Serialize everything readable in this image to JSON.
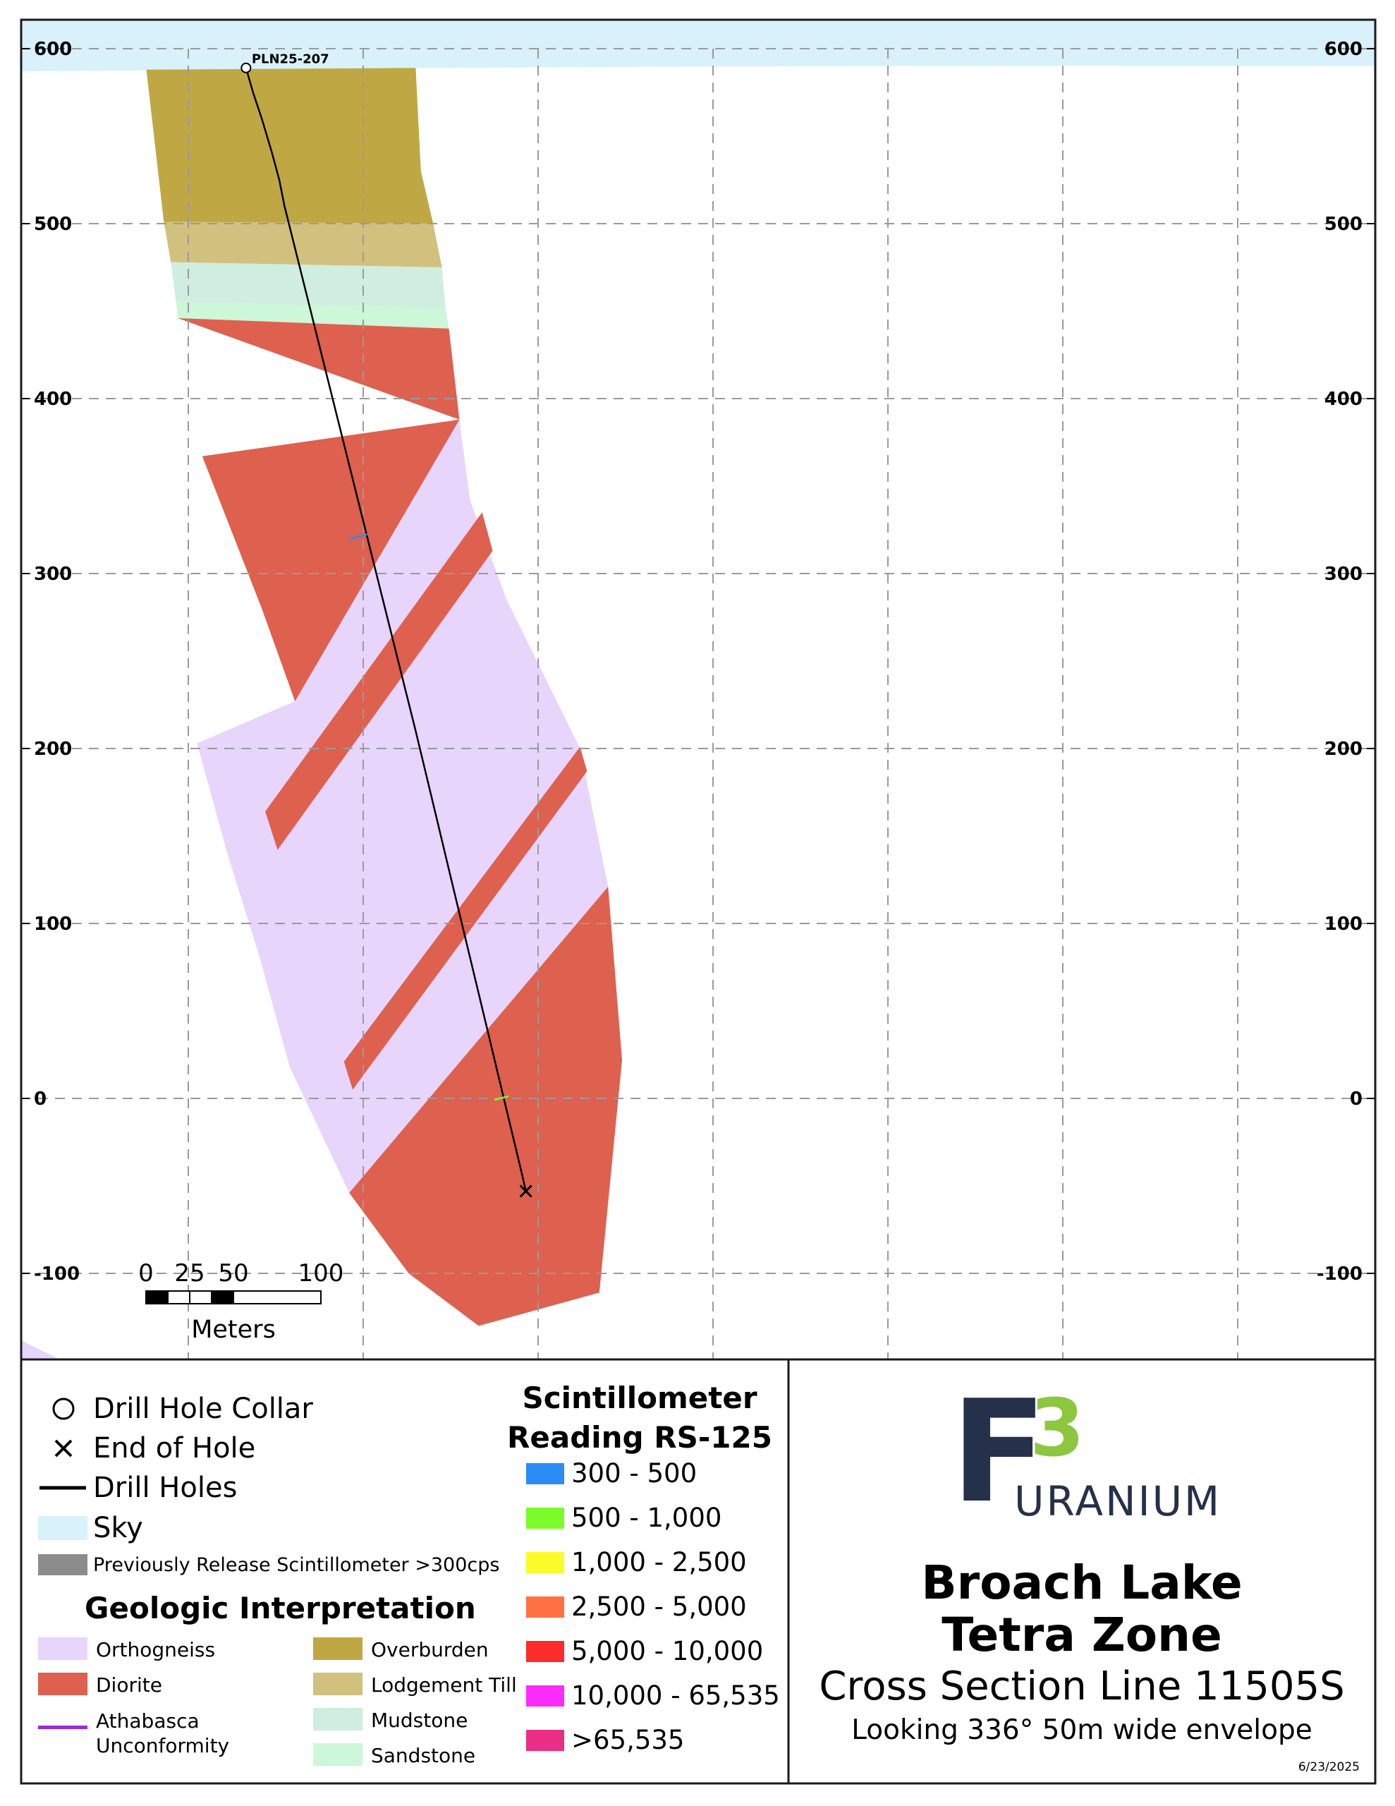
{
  "drill_hole": {
    "label": "PLN25-207",
    "path": [
      [
        -67,
        589
      ],
      [
        -63,
        575
      ],
      [
        -58,
        560
      ],
      [
        -52,
        540
      ],
      [
        -48,
        525
      ],
      [
        -45,
        510
      ],
      [
        -40,
        490
      ],
      [
        -35,
        470
      ],
      [
        -30,
        450
      ],
      [
        -25,
        430
      ],
      [
        -20,
        410
      ],
      [
        -15,
        390
      ],
      [
        -10,
        370
      ],
      [
        -5,
        350
      ],
      [
        0,
        330
      ],
      [
        5,
        310
      ],
      [
        10,
        290
      ],
      [
        15,
        270
      ],
      [
        20,
        250
      ],
      [
        25,
        230
      ],
      [
        30,
        210
      ],
      [
        36,
        185
      ],
      [
        42,
        160
      ],
      [
        48,
        135
      ],
      [
        54,
        110
      ],
      [
        60,
        85
      ],
      [
        66,
        60
      ],
      [
        72,
        35
      ],
      [
        78,
        10
      ],
      [
        84,
        -15
      ],
      [
        90,
        -40
      ],
      [
        93,
        -53
      ]
    ]
  },
  "scale_bar": {
    "ticks": [
      "0",
      "25",
      "50",
      "100"
    ],
    "unit": "Meters"
  },
  "colors": {
    "sky": "#d8f1fb",
    "overburden": "#bfa844",
    "lodgement_till": "#d2c17e",
    "mudstone": "#d0eee0",
    "sandstone": "#ccf7d8",
    "diorite": "#de604f",
    "orthogneiss": "#e8d5fb",
    "unconformity": "#9b2bd0",
    "prev_scint": "#8c8c8c",
    "grid": "#9a9a9a",
    "frame": "#1a1a1a",
    "logo_f": "#25304a",
    "logo_3": "#8dc63f"
  },
  "legend": {
    "symbols": [
      {
        "label": "Drill Hole Collar",
        "icon": "circle-icon"
      },
      {
        "label": "End of Hole",
        "icon": "cross-icon"
      },
      {
        "label": "Drill Holes",
        "icon": "line-icon"
      },
      {
        "label": "Sky",
        "icon": "swatch"
      },
      {
        "label": "Previously Release Scintillometer >300cps",
        "icon": "swatch"
      }
    ],
    "geo_heading": "Geologic Interpretation",
    "geo_left": [
      "Orthogneiss",
      "Diorite",
      "Athabasca Unconformity"
    ],
    "geo_right": [
      "Overburden",
      "Lodgement Till",
      "Mudstone",
      "Sandstone"
    ],
    "scint_heading": [
      "Scintillometer",
      "Reading RS-125"
    ],
    "scint_ranges": [
      {
        "label": "300 - 500",
        "color": "#2a8cf4"
      },
      {
        "label": "500 - 1,000",
        "color": "#7cfb2c"
      },
      {
        "label": "1,000 - 2,500",
        "color": "#fbfb2a"
      },
      {
        "label": "2,500 - 5,000",
        "color": "#ff7043"
      },
      {
        "label": "5,000 - 10,000",
        "color": "#fc2c2c"
      },
      {
        "label": "10,000 - 65,535",
        "color": "#fc2cfc"
      },
      {
        "label": ">65,535",
        "color": "#ea2e87"
      }
    ]
  },
  "logo": {
    "letter": "F",
    "number": "3",
    "word": "URANIUM"
  },
  "title": {
    "line1": "Broach Lake",
    "line2": "Tetra Zone",
    "line3": "Cross Section Line 11505S",
    "line4": "Looking 336° 50m wide envelope",
    "date": "6/23/2025"
  }
}
